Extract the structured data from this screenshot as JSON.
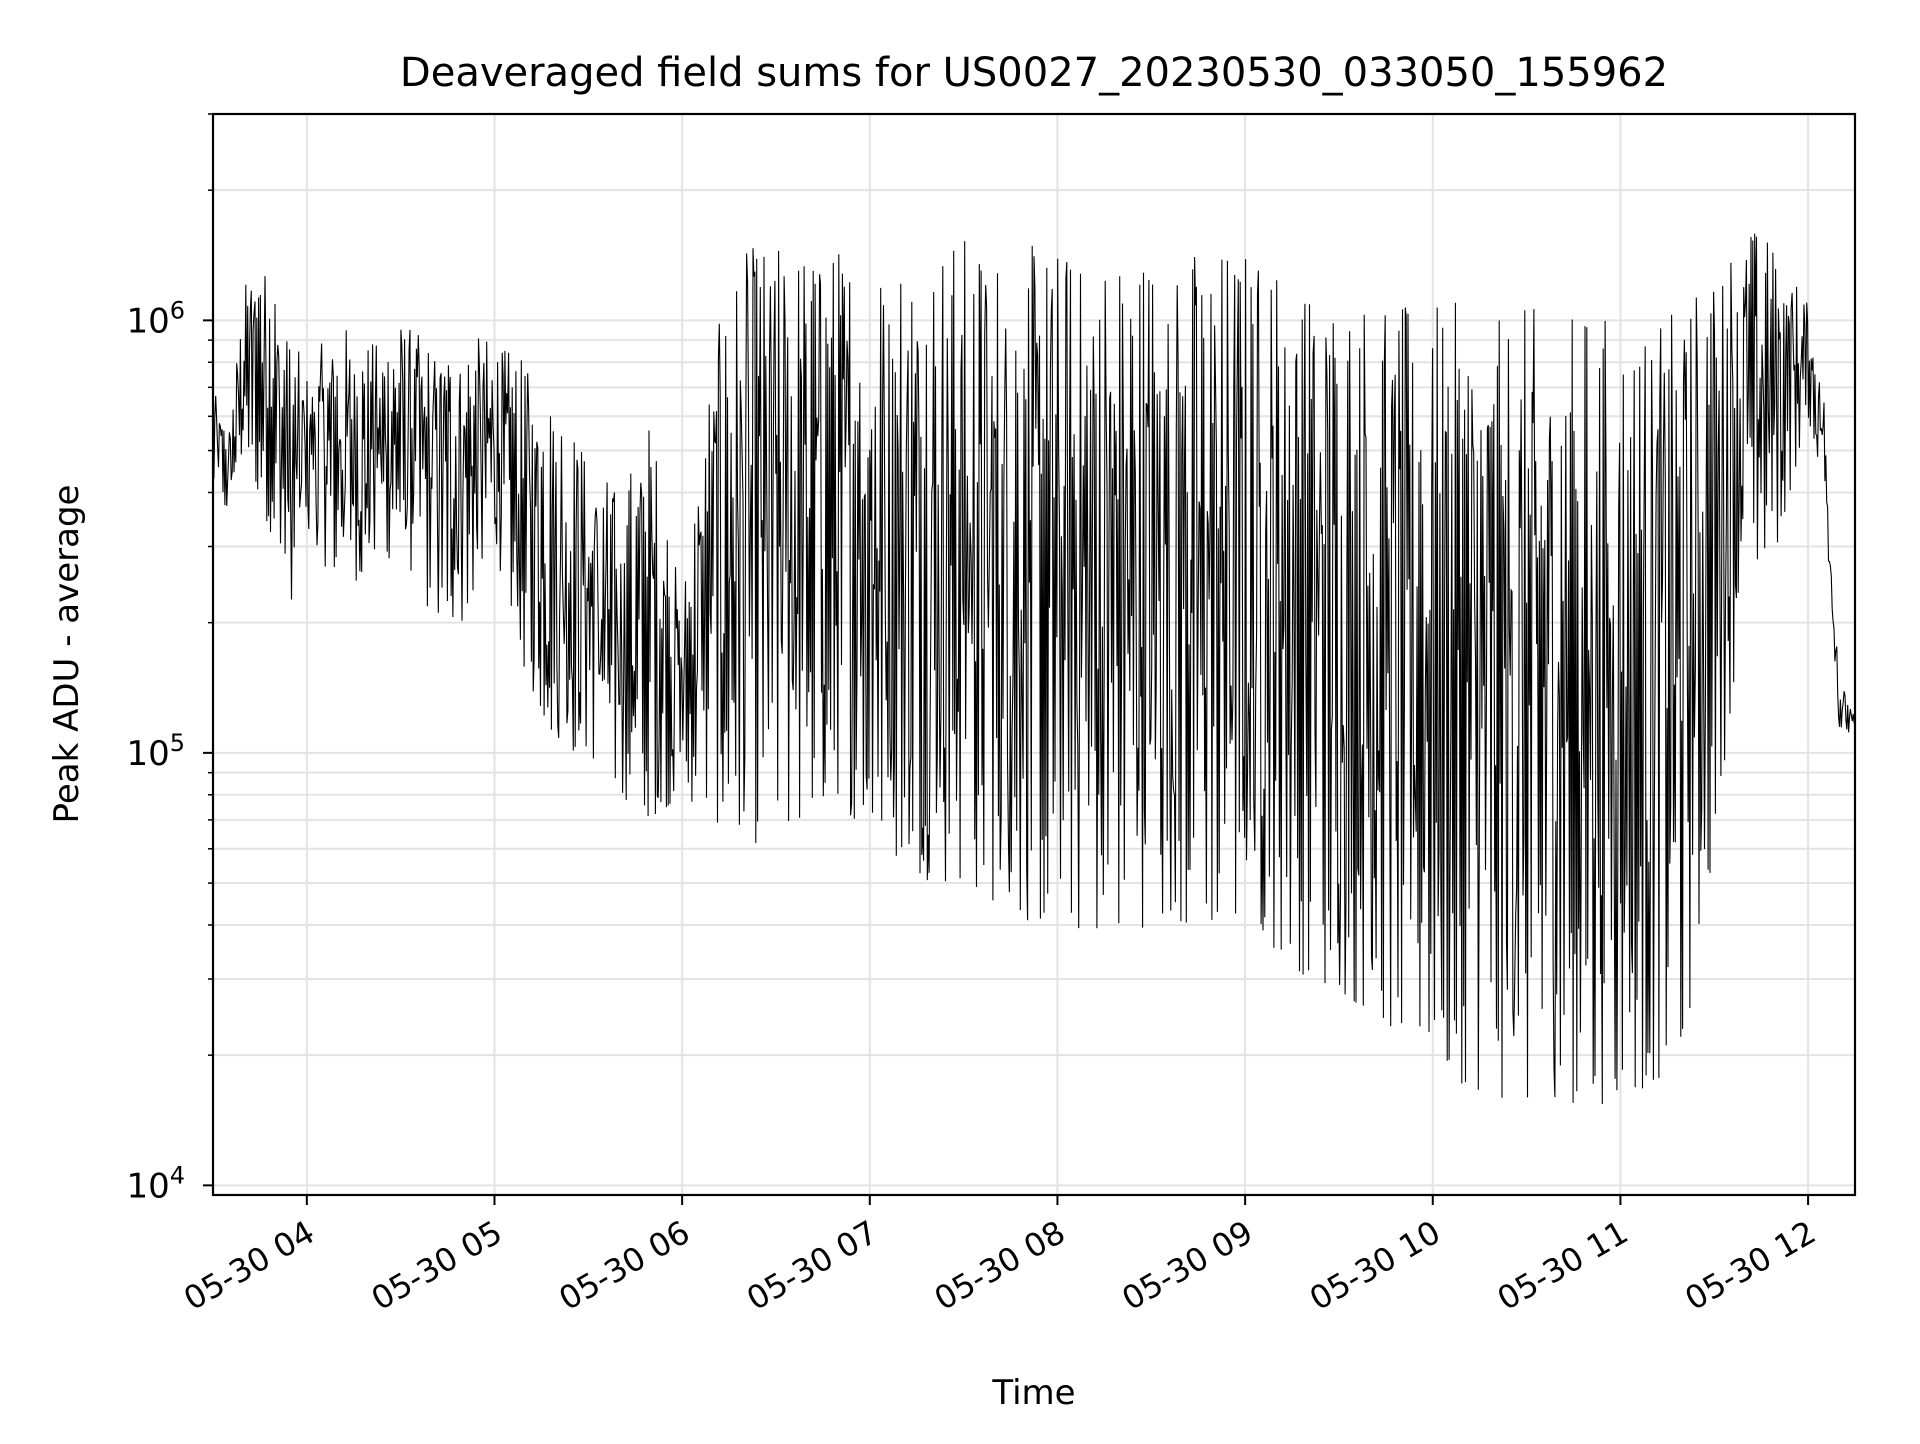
{
  "chart_data": {
    "type": "line",
    "title": "Deaveraged field sums for US0027_20230530_033050_155962",
    "xlabel": "Time",
    "ylabel": "Peak ADU - average",
    "xlim": [
      "2023-05-30 03:30",
      "2023-05-30 12:15"
    ],
    "ylim": [
      9500,
      3000000
    ],
    "yscale": "log",
    "grid": true,
    "line_color": "#000000",
    "x_ticks": [
      {
        "value": "2023-05-30 04:00",
        "label": "05-30 04"
      },
      {
        "value": "2023-05-30 05:00",
        "label": "05-30 05"
      },
      {
        "value": "2023-05-30 06:00",
        "label": "05-30 06"
      },
      {
        "value": "2023-05-30 07:00",
        "label": "05-30 07"
      },
      {
        "value": "2023-05-30 08:00",
        "label": "05-30 08"
      },
      {
        "value": "2023-05-30 09:00",
        "label": "05-30 09"
      },
      {
        "value": "2023-05-30 10:00",
        "label": "05-30 10"
      },
      {
        "value": "2023-05-30 11:00",
        "label": "05-30 11"
      },
      {
        "value": "2023-05-30 12:00",
        "label": "05-30 12"
      }
    ],
    "y_ticks": [
      {
        "value": 10000,
        "base": "10",
        "exp": "4"
      },
      {
        "value": 100000,
        "base": "10",
        "exp": "5"
      },
      {
        "value": 1000000,
        "base": "10",
        "exp": "6"
      }
    ],
    "series": [
      {
        "x": [
          "2023-05-30 03:30",
          "2023-05-30 03:35",
          "2023-05-30 03:40",
          "2023-05-30 03:45",
          "2023-05-30 03:50",
          "2023-05-30 03:55",
          "2023-05-30 04:00",
          "2023-05-30 04:10",
          "2023-05-30 04:20",
          "2023-05-30 04:30",
          "2023-05-30 04:40",
          "2023-05-30 04:50",
          "2023-05-30 05:00",
          "2023-05-30 05:10",
          "2023-05-30 05:20",
          "2023-05-30 05:30",
          "2023-05-30 05:40",
          "2023-05-30 05:50",
          "2023-05-30 06:00",
          "2023-05-30 06:10",
          "2023-05-30 06:20",
          "2023-05-30 06:30",
          "2023-05-30 06:40",
          "2023-05-30 06:50",
          "2023-05-30 07:00",
          "2023-05-30 07:10",
          "2023-05-30 07:20",
          "2023-05-30 07:30",
          "2023-05-30 07:40",
          "2023-05-30 07:50",
          "2023-05-30 08:00",
          "2023-05-30 08:10",
          "2023-05-30 08:20",
          "2023-05-30 08:30",
          "2023-05-30 08:40",
          "2023-05-30 08:50",
          "2023-05-30 09:00",
          "2023-05-30 09:10",
          "2023-05-30 09:20",
          "2023-05-30 09:30",
          "2023-05-30 09:40",
          "2023-05-30 09:50",
          "2023-05-30 10:00",
          "2023-05-30 10:10",
          "2023-05-30 10:20",
          "2023-05-30 10:30",
          "2023-05-30 10:40",
          "2023-05-30 10:50",
          "2023-05-30 11:00",
          "2023-05-30 11:10",
          "2023-05-30 11:20",
          "2023-05-30 11:30",
          "2023-05-30 11:40",
          "2023-05-30 11:50",
          "2023-05-30 12:00",
          "2023-05-30 12:05",
          "2023-05-30 12:10",
          "2023-05-30 12:15"
        ],
        "y_high": [
          700000,
          550000,
          1200000,
          1500000,
          1300000,
          900000,
          800000,
          1000000,
          900000,
          1000000,
          900000,
          950000,
          900000,
          800000,
          700000,
          500000,
          400000,
          600000,
          230000,
          900000,
          1500000,
          1500000,
          1500000,
          1500000,
          1500000,
          1500000,
          1600000,
          1600000,
          1500000,
          1500000,
          1500000,
          1500000,
          1500000,
          1500000,
          1500000,
          1500000,
          1500000,
          1400000,
          1300000,
          1200000,
          1200000,
          1100000,
          1100000,
          1100000,
          1000000,
          1100000,
          1000000,
          1100000,
          1000000,
          1000000,
          1100000,
          1400000,
          1700000,
          1500000,
          1100000,
          700000,
          150000,
          120000
        ],
        "y_low": [
          400000,
          350000,
          500000,
          380000,
          300000,
          200000,
          300000,
          250000,
          250000,
          300000,
          200000,
          200000,
          300000,
          150000,
          100000,
          100000,
          80000,
          70000,
          80000,
          70000,
          60000,
          65000,
          70000,
          80000,
          60000,
          55000,
          50000,
          50000,
          45000,
          40000,
          40000,
          38000,
          38000,
          40000,
          38000,
          40000,
          40000,
          35000,
          30000,
          28000,
          25000,
          22000,
          20000,
          17000,
          16000,
          15000,
          16000,
          15000,
          16000,
          17000,
          20000,
          60000,
          250000,
          300000,
          600000,
          400000,
          110000,
          110000
        ]
      }
    ]
  }
}
